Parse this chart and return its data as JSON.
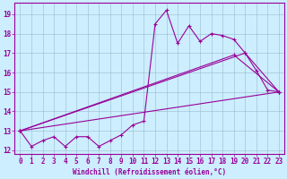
{
  "bg_color": "#cceeff",
  "line_color": "#990099",
  "grid_color": "#99bbcc",
  "xlim": [
    -0.5,
    23.5
  ],
  "ylim": [
    11.8,
    19.6
  ],
  "xticks": [
    0,
    1,
    2,
    3,
    4,
    5,
    6,
    7,
    8,
    9,
    10,
    11,
    12,
    13,
    14,
    15,
    16,
    17,
    18,
    19,
    20,
    21,
    22,
    23
  ],
  "yticks": [
    12,
    13,
    14,
    15,
    16,
    17,
    18,
    19
  ],
  "line1_x": [
    0,
    1,
    2,
    3,
    4,
    5,
    6,
    7,
    8,
    9,
    10,
    11,
    12,
    13,
    14,
    15,
    16,
    17,
    18,
    19,
    20,
    21,
    22,
    23
  ],
  "line1_y": [
    13.0,
    12.2,
    12.5,
    12.7,
    12.2,
    12.7,
    12.7,
    12.2,
    12.5,
    12.8,
    13.3,
    13.5,
    18.5,
    19.2,
    17.5,
    18.4,
    17.6,
    18.0,
    17.9,
    17.7,
    17.0,
    16.1,
    15.1,
    15.0
  ],
  "line2_x": [
    0,
    23
  ],
  "line2_y": [
    13.0,
    15.0
  ],
  "line3_x": [
    0,
    23
  ],
  "line3_y": [
    13.0,
    15.0
  ],
  "line4_x": [
    0,
    23
  ],
  "line4_y": [
    13.0,
    15.0
  ],
  "fan_lines": [
    {
      "x": [
        0,
        23
      ],
      "y": [
        13.0,
        15.0
      ]
    },
    {
      "x": [
        0,
        19,
        23
      ],
      "y": [
        13.0,
        16.9,
        15.0
      ]
    },
    {
      "x": [
        0,
        20,
        23
      ],
      "y": [
        13.0,
        17.0,
        15.0
      ]
    }
  ],
  "xlabel": "Windchill (Refroidissement éolien,°C)",
  "tick_fontsize": 5.5,
  "xlabel_fontsize": 5.5
}
